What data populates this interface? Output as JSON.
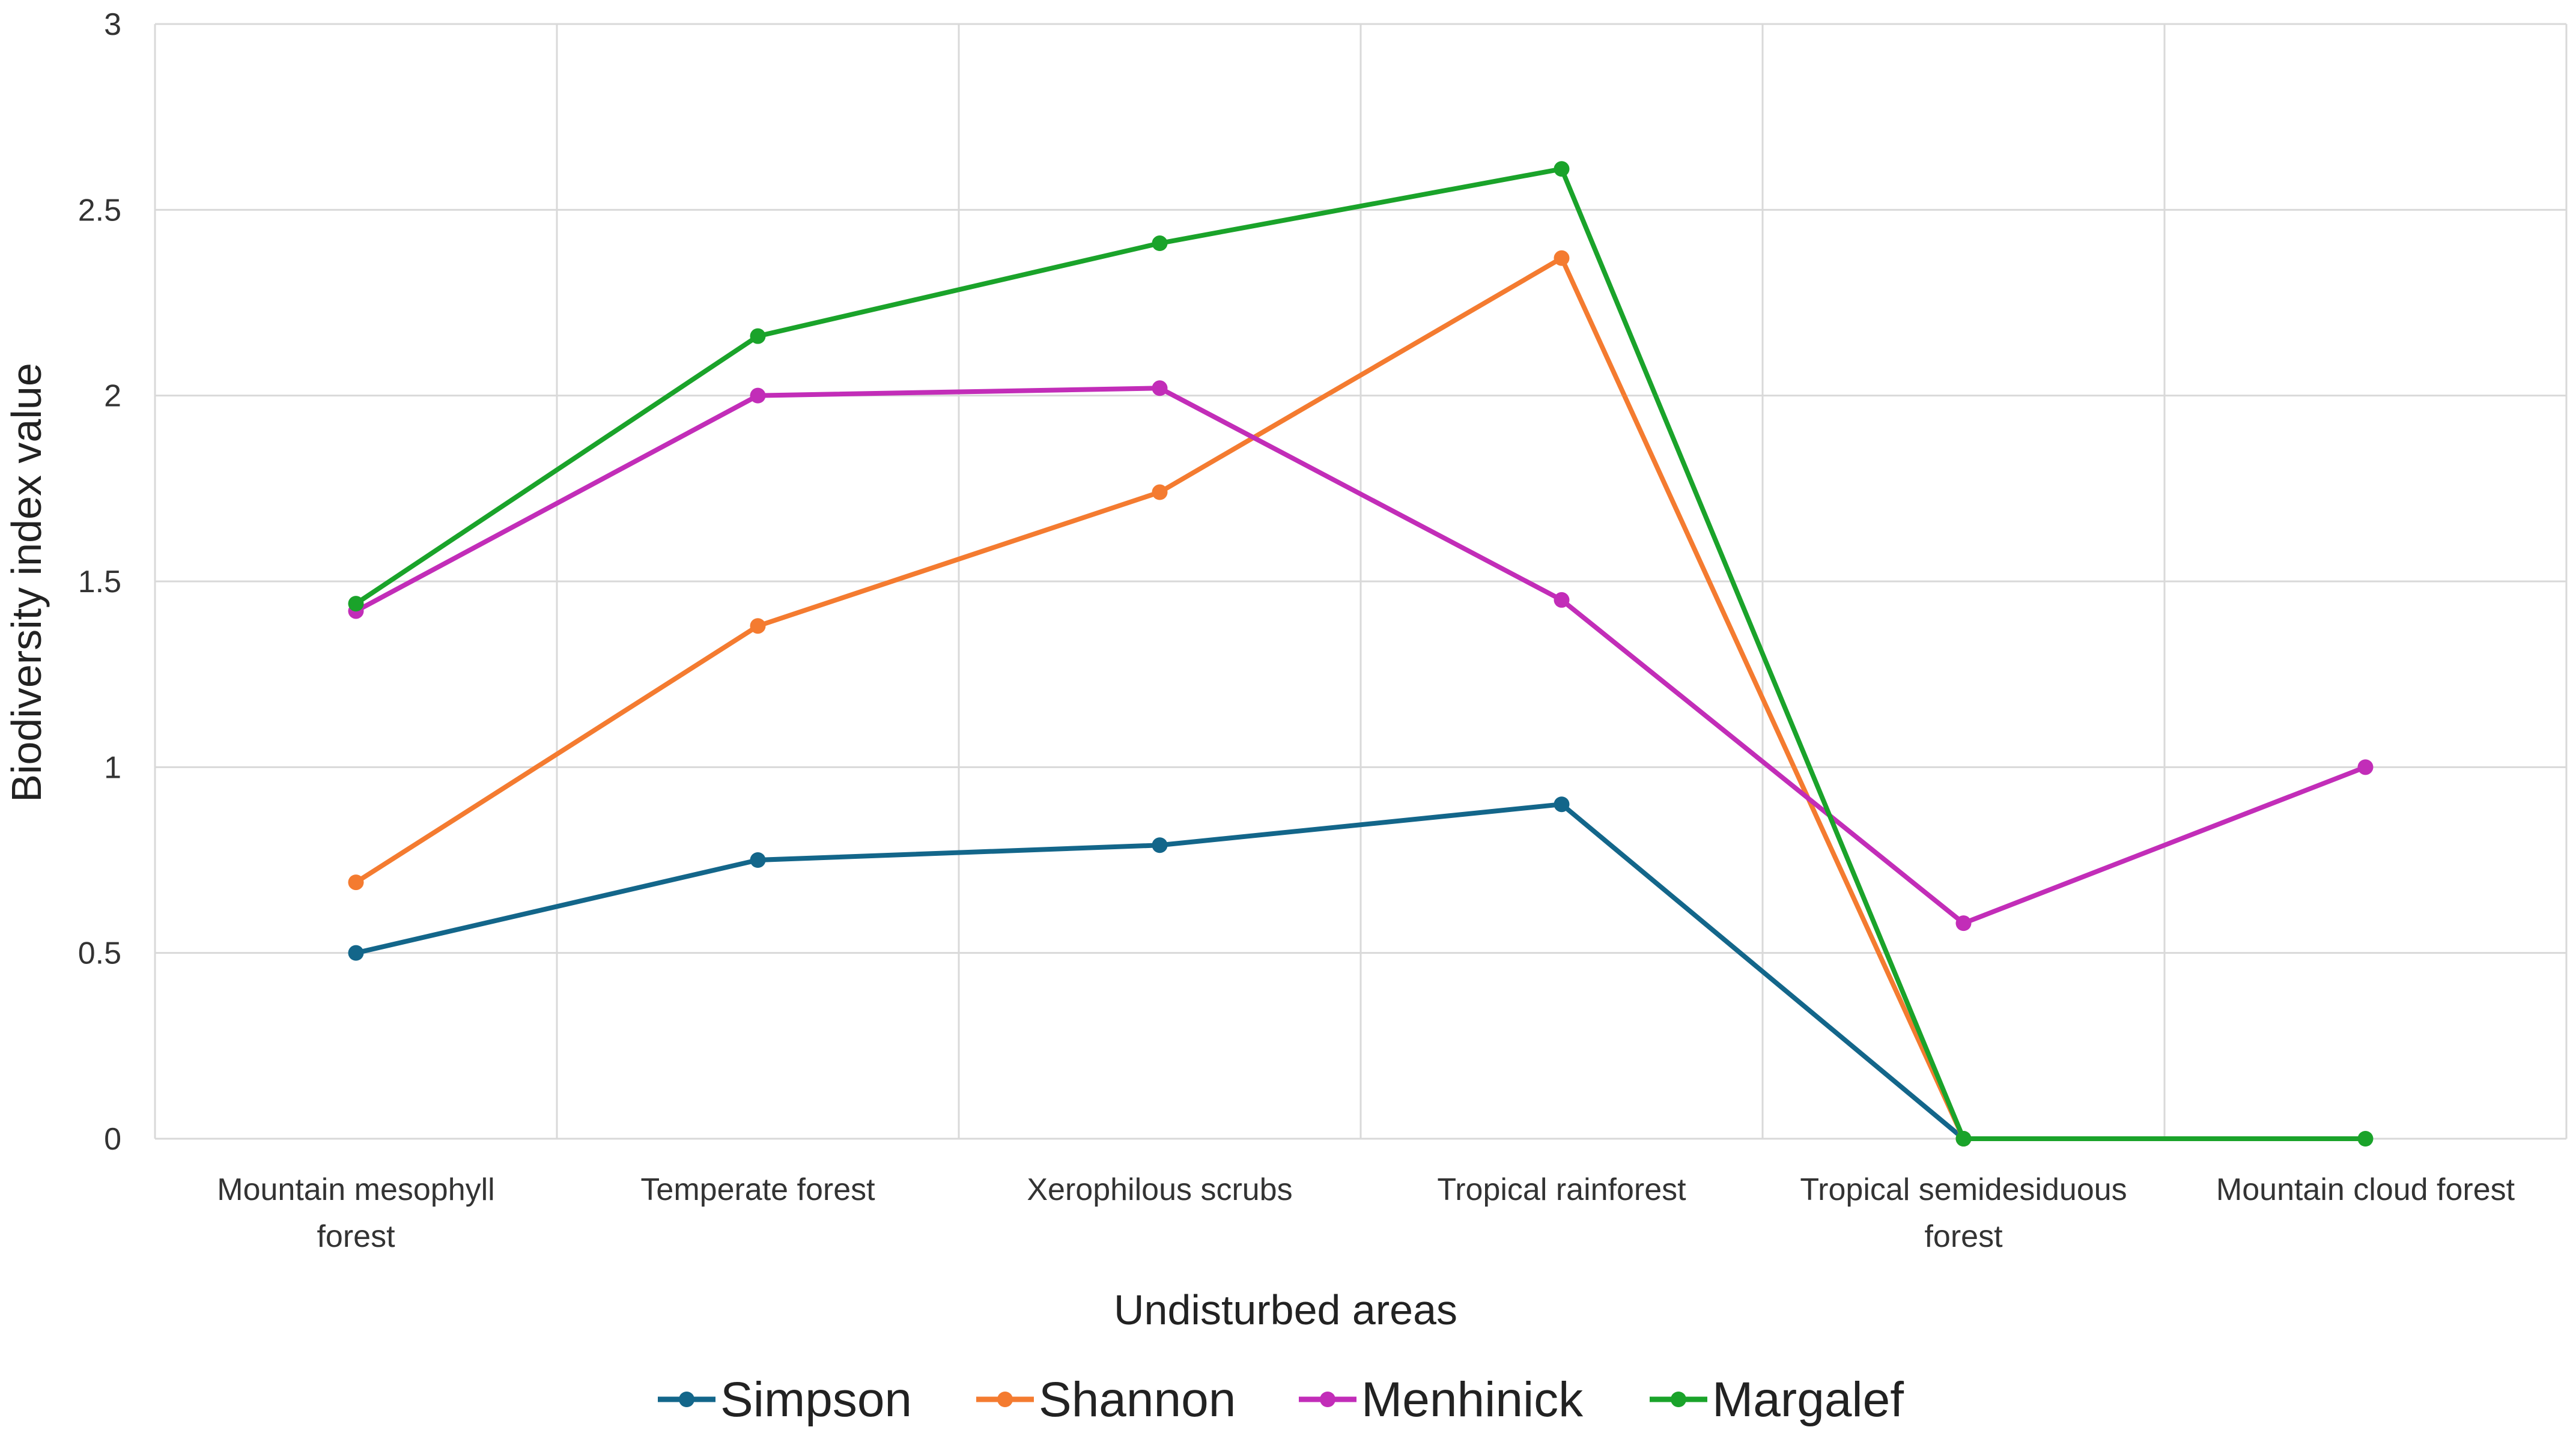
{
  "chart_data": {
    "type": "line",
    "title": "",
    "xlabel": "Undisturbed areas",
    "ylabel": "Biodiversity index value",
    "ylim": [
      0,
      3
    ],
    "yticks": [
      "0",
      "0.5",
      "1",
      "1.5",
      "2",
      "2.5",
      "3"
    ],
    "categories": [
      [
        "Mountain mesophyll",
        "forest"
      ],
      [
        "Temperate forest"
      ],
      [
        "Xerophilous scrubs"
      ],
      [
        "Tropical rainforest"
      ],
      [
        "Tropical semidesiduous",
        "forest"
      ],
      [
        "Mountain cloud forest"
      ]
    ],
    "series": [
      {
        "name": "Simpson",
        "color": "#13668a",
        "values": [
          0.5,
          0.75,
          0.79,
          0.9,
          0.0,
          null
        ]
      },
      {
        "name": "Shannon",
        "color": "#f47b30",
        "values": [
          0.69,
          1.38,
          1.74,
          2.37,
          0.0,
          null
        ]
      },
      {
        "name": "Menhinick",
        "color": "#c22db8",
        "values": [
          1.42,
          2.0,
          2.02,
          1.45,
          0.58,
          1.0
        ]
      },
      {
        "name": "Margalef",
        "color": "#1aa32a",
        "values": [
          1.44,
          2.16,
          2.41,
          2.61,
          0.0,
          0.0
        ]
      }
    ],
    "grid": true,
    "legend_position": "bottom"
  }
}
